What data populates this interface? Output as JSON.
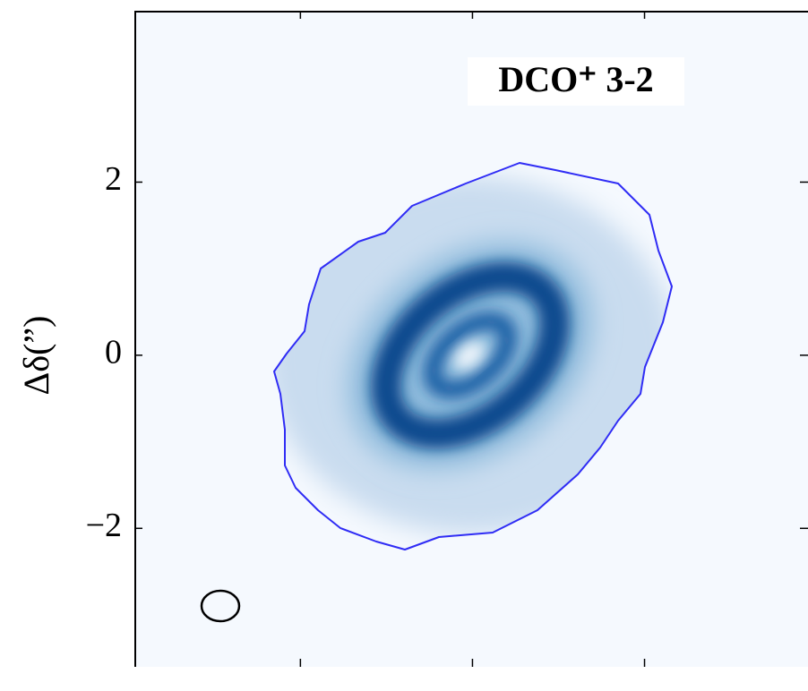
{
  "chart_data": {
    "type": "image",
    "annotation": "DCO⁺ 3-2",
    "ylabel": "Δδ(”)",
    "xlim": [
      3.93,
      -3.9
    ],
    "xticks": [
      2,
      0,
      -2
    ],
    "ylim": [
      -3.6,
      3.98
    ],
    "yticks": [
      {
        "value": -2,
        "label": "−2"
      },
      0,
      2
    ]
  }
}
